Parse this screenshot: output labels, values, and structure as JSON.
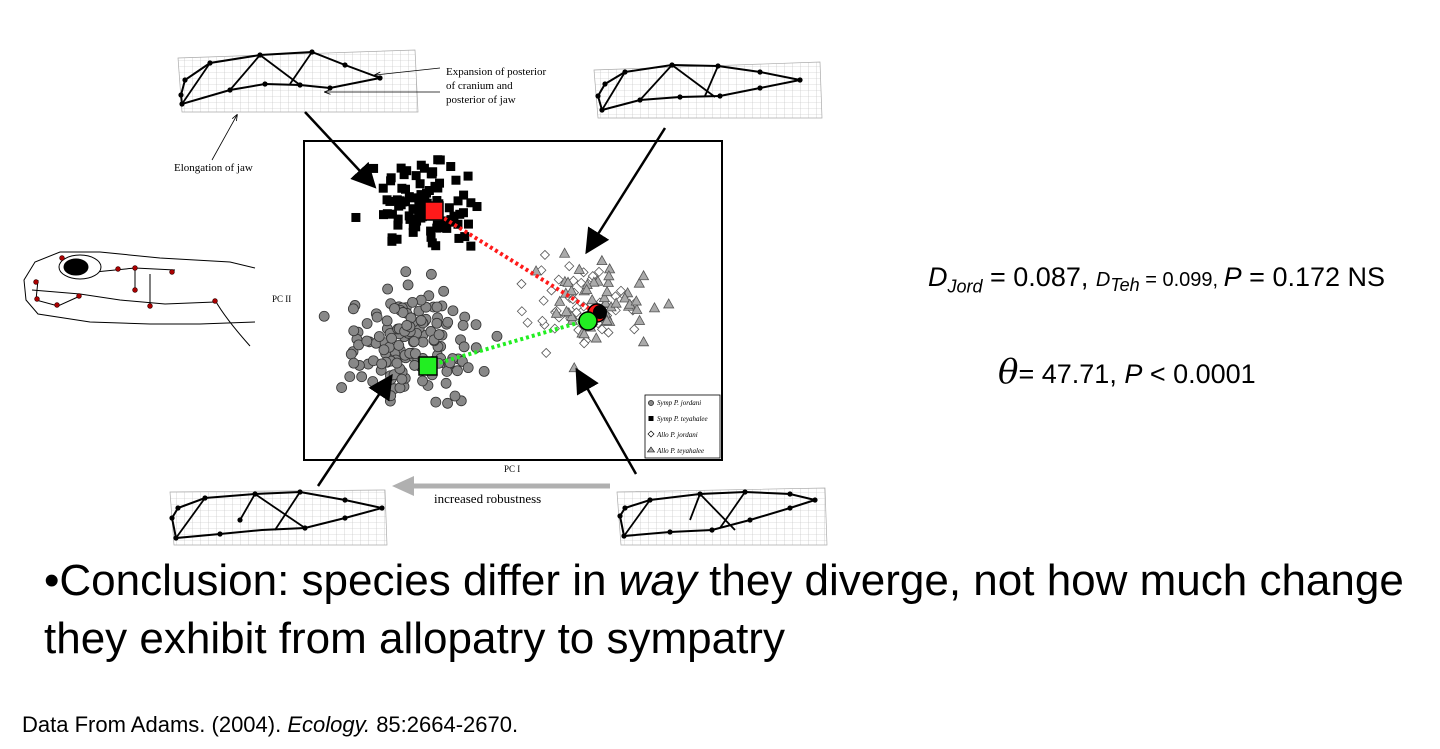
{
  "annotations": {
    "expansion": [
      "Expansion of posterior",
      "of cranium and",
      "posterior of jaw"
    ],
    "elongation": "Elongation of jaw",
    "axis_y": "PC II",
    "axis_x": "PC I",
    "robustness": "increased robustness"
  },
  "legend": [
    {
      "label": "Symp P. jordani",
      "marker": "circle",
      "color": "#888888"
    },
    {
      "label": "Symp P. teyahalee",
      "marker": "square",
      "color": "#000000"
    },
    {
      "label": "Allo P. jordani",
      "marker": "diamond",
      "color": "#ffffff"
    },
    {
      "label": "Allo P. teyahalee",
      "marker": "triangle",
      "color": "#aaaaaa"
    }
  ],
  "stats": {
    "d_jord_sym": "D",
    "d_jord_sub": "Jord",
    "d_jord_val": " = 0.087, ",
    "d_teh_sym": "D",
    "d_teh_sub": "Teh",
    "d_teh_val": " = 0.099, ",
    "p1_sym": "P",
    "p1_val": " = 0.172 NS",
    "theta_sym": "θ",
    "theta_val": "= 47.71, ",
    "p2_sym": "P",
    "p2_val": " < 0.0001"
  },
  "conclusion": {
    "bullet": "•",
    "before": "Conclusion: species differ in ",
    "emph": "way",
    "after": " they diverge, not how much change they exhibit from allopatry to sympatry"
  },
  "citation": {
    "before": "Data From Adams. (2004). ",
    "journal": "Ecology.",
    "after": " 85:2664-2670."
  },
  "colors": {
    "teyahalee_mean": "#ff1a1a",
    "jordani_mean": "#22ee22",
    "arrow_gray": "#b0b0b0"
  }
}
